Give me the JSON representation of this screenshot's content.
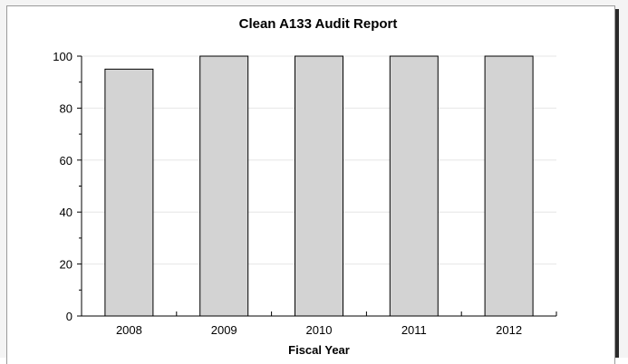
{
  "chart_data": {
    "type": "bar",
    "title": "Clean A133 Audit Report",
    "xlabel": "Fiscal Year",
    "ylabel": "",
    "categories": [
      "2008",
      "2009",
      "2010",
      "2011",
      "2012"
    ],
    "values": [
      95,
      100,
      100,
      100,
      100
    ],
    "ylim": [
      0,
      100
    ],
    "yticks": [
      "0",
      "20",
      "40",
      "60",
      "80",
      "100"
    ],
    "grid": true,
    "legend": "none",
    "colors": {
      "bar_fill": "#d3d3d3",
      "bar_stroke": "#000000",
      "grid": "#e6e6e6",
      "axis": "#000000"
    }
  }
}
